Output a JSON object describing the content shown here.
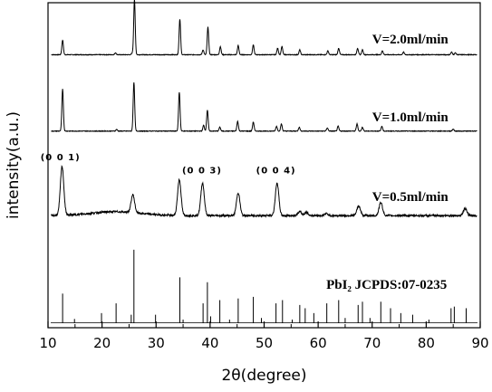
{
  "chart_data": {
    "type": "line",
    "xlabel": "2θ(degree)",
    "ylabel": "intensity(a.u.)",
    "xlim": [
      10,
      90
    ],
    "xticks": [
      10,
      20,
      30,
      40,
      50,
      60,
      70,
      80,
      90
    ],
    "y_ticks_shown": false,
    "grid": false,
    "series": [
      {
        "name": "V=2.0ml/min",
        "baseline": 0.84,
        "peaks": [
          {
            "x": 12.7,
            "h": 0.045
          },
          {
            "x": 22.5,
            "h": 0.006
          },
          {
            "x": 25.6,
            "h": 0.005
          },
          {
            "x": 26.0,
            "h": 0.17
          },
          {
            "x": 34.4,
            "h": 0.11
          },
          {
            "x": 38.7,
            "h": 0.015
          },
          {
            "x": 39.6,
            "h": 0.085
          },
          {
            "x": 41.9,
            "h": 0.025
          },
          {
            "x": 45.2,
            "h": 0.028
          },
          {
            "x": 48.0,
            "h": 0.03
          },
          {
            "x": 52.5,
            "h": 0.02
          },
          {
            "x": 53.3,
            "h": 0.025
          },
          {
            "x": 56.6,
            "h": 0.015
          },
          {
            "x": 61.8,
            "h": 0.012
          },
          {
            "x": 63.8,
            "h": 0.02
          },
          {
            "x": 67.3,
            "h": 0.02
          },
          {
            "x": 68.2,
            "h": 0.015
          },
          {
            "x": 71.9,
            "h": 0.012
          },
          {
            "x": 75.8,
            "h": 0.008
          },
          {
            "x": 84.7,
            "h": 0.008
          },
          {
            "x": 85.4,
            "h": 0.006
          }
        ]
      },
      {
        "name": "V=1.0ml/min",
        "baseline": 0.605,
        "peaks": [
          {
            "x": 12.7,
            "h": 0.13
          },
          {
            "x": 22.7,
            "h": 0.005
          },
          {
            "x": 25.9,
            "h": 0.15
          },
          {
            "x": 34.3,
            "h": 0.12
          },
          {
            "x": 38.8,
            "h": 0.018
          },
          {
            "x": 39.5,
            "h": 0.065
          },
          {
            "x": 41.8,
            "h": 0.012
          },
          {
            "x": 45.1,
            "h": 0.03
          },
          {
            "x": 48.0,
            "h": 0.028
          },
          {
            "x": 52.3,
            "h": 0.015
          },
          {
            "x": 53.2,
            "h": 0.022
          },
          {
            "x": 56.5,
            "h": 0.012
          },
          {
            "x": 61.7,
            "h": 0.01
          },
          {
            "x": 63.7,
            "h": 0.015
          },
          {
            "x": 67.2,
            "h": 0.022
          },
          {
            "x": 68.2,
            "h": 0.012
          },
          {
            "x": 71.8,
            "h": 0.015
          },
          {
            "x": 85.0,
            "h": 0.006
          }
        ]
      },
      {
        "name": "V=0.5ml/min",
        "baseline": 0.345,
        "peaks": [
          {
            "x": 12.6,
            "h": 0.15
          },
          {
            "x": 25.7,
            "h": 0.055
          },
          {
            "x": 34.3,
            "h": 0.11
          },
          {
            "x": 38.6,
            "h": 0.1
          },
          {
            "x": 45.2,
            "h": 0.07
          },
          {
            "x": 52.4,
            "h": 0.1
          },
          {
            "x": 56.6,
            "h": 0.012
          },
          {
            "x": 57.8,
            "h": 0.01
          },
          {
            "x": 61.5,
            "h": 0.006
          },
          {
            "x": 67.5,
            "h": 0.03
          },
          {
            "x": 71.6,
            "h": 0.04
          },
          {
            "x": 87.2,
            "h": 0.022
          }
        ]
      },
      {
        "name": "PbI₂ JCPDS:07-0235",
        "baseline": 0.015,
        "sticks": [
          {
            "x": 12.7,
            "h": 0.09
          },
          {
            "x": 14.9,
            "h": 0.012
          },
          {
            "x": 19.9,
            "h": 0.03
          },
          {
            "x": 22.6,
            "h": 0.06
          },
          {
            "x": 25.4,
            "h": 0.025
          },
          {
            "x": 25.9,
            "h": 0.225
          },
          {
            "x": 29.9,
            "h": 0.025
          },
          {
            "x": 34.4,
            "h": 0.14
          },
          {
            "x": 35.0,
            "h": 0.01
          },
          {
            "x": 38.7,
            "h": 0.06
          },
          {
            "x": 39.5,
            "h": 0.125
          },
          {
            "x": 40.1,
            "h": 0.02
          },
          {
            "x": 41.8,
            "h": 0.07
          },
          {
            "x": 43.6,
            "h": 0.01
          },
          {
            "x": 45.2,
            "h": 0.075
          },
          {
            "x": 48.0,
            "h": 0.08
          },
          {
            "x": 49.5,
            "h": 0.015
          },
          {
            "x": 52.2,
            "h": 0.06
          },
          {
            "x": 53.4,
            "h": 0.07
          },
          {
            "x": 55.2,
            "h": 0.01
          },
          {
            "x": 56.6,
            "h": 0.055
          },
          {
            "x": 57.6,
            "h": 0.045
          },
          {
            "x": 59.2,
            "h": 0.03
          },
          {
            "x": 61.6,
            "h": 0.06
          },
          {
            "x": 63.8,
            "h": 0.07
          },
          {
            "x": 65.0,
            "h": 0.015
          },
          {
            "x": 67.4,
            "h": 0.055
          },
          {
            "x": 68.2,
            "h": 0.065
          },
          {
            "x": 69.6,
            "h": 0.015
          },
          {
            "x": 71.6,
            "h": 0.065
          },
          {
            "x": 73.4,
            "h": 0.045
          },
          {
            "x": 75.3,
            "h": 0.03
          },
          {
            "x": 77.5,
            "h": 0.025
          },
          {
            "x": 80.5,
            "h": 0.01
          },
          {
            "x": 84.6,
            "h": 0.045
          },
          {
            "x": 85.2,
            "h": 0.05
          },
          {
            "x": 87.4,
            "h": 0.045
          }
        ]
      }
    ],
    "annotations": [
      {
        "text": "(0 0 1)",
        "x": 12.3,
        "y": 0.515
      },
      {
        "text": "(0 0 3)",
        "x": 38.5,
        "y": 0.475
      },
      {
        "text": "(0 0 4)",
        "x": 52.2,
        "y": 0.475
      }
    ],
    "series_labels": [
      {
        "text": "V=2.0ml/min",
        "x": 70.0,
        "y": 0.875
      },
      {
        "text": "V=1.0ml/min",
        "x": 70.0,
        "y": 0.635
      },
      {
        "text": "V=0.5ml/min",
        "x": 70.0,
        "y": 0.39
      },
      {
        "text": "PbI₂  JCPDS:07-0235",
        "x": 61.5,
        "y": 0.12
      }
    ]
  }
}
